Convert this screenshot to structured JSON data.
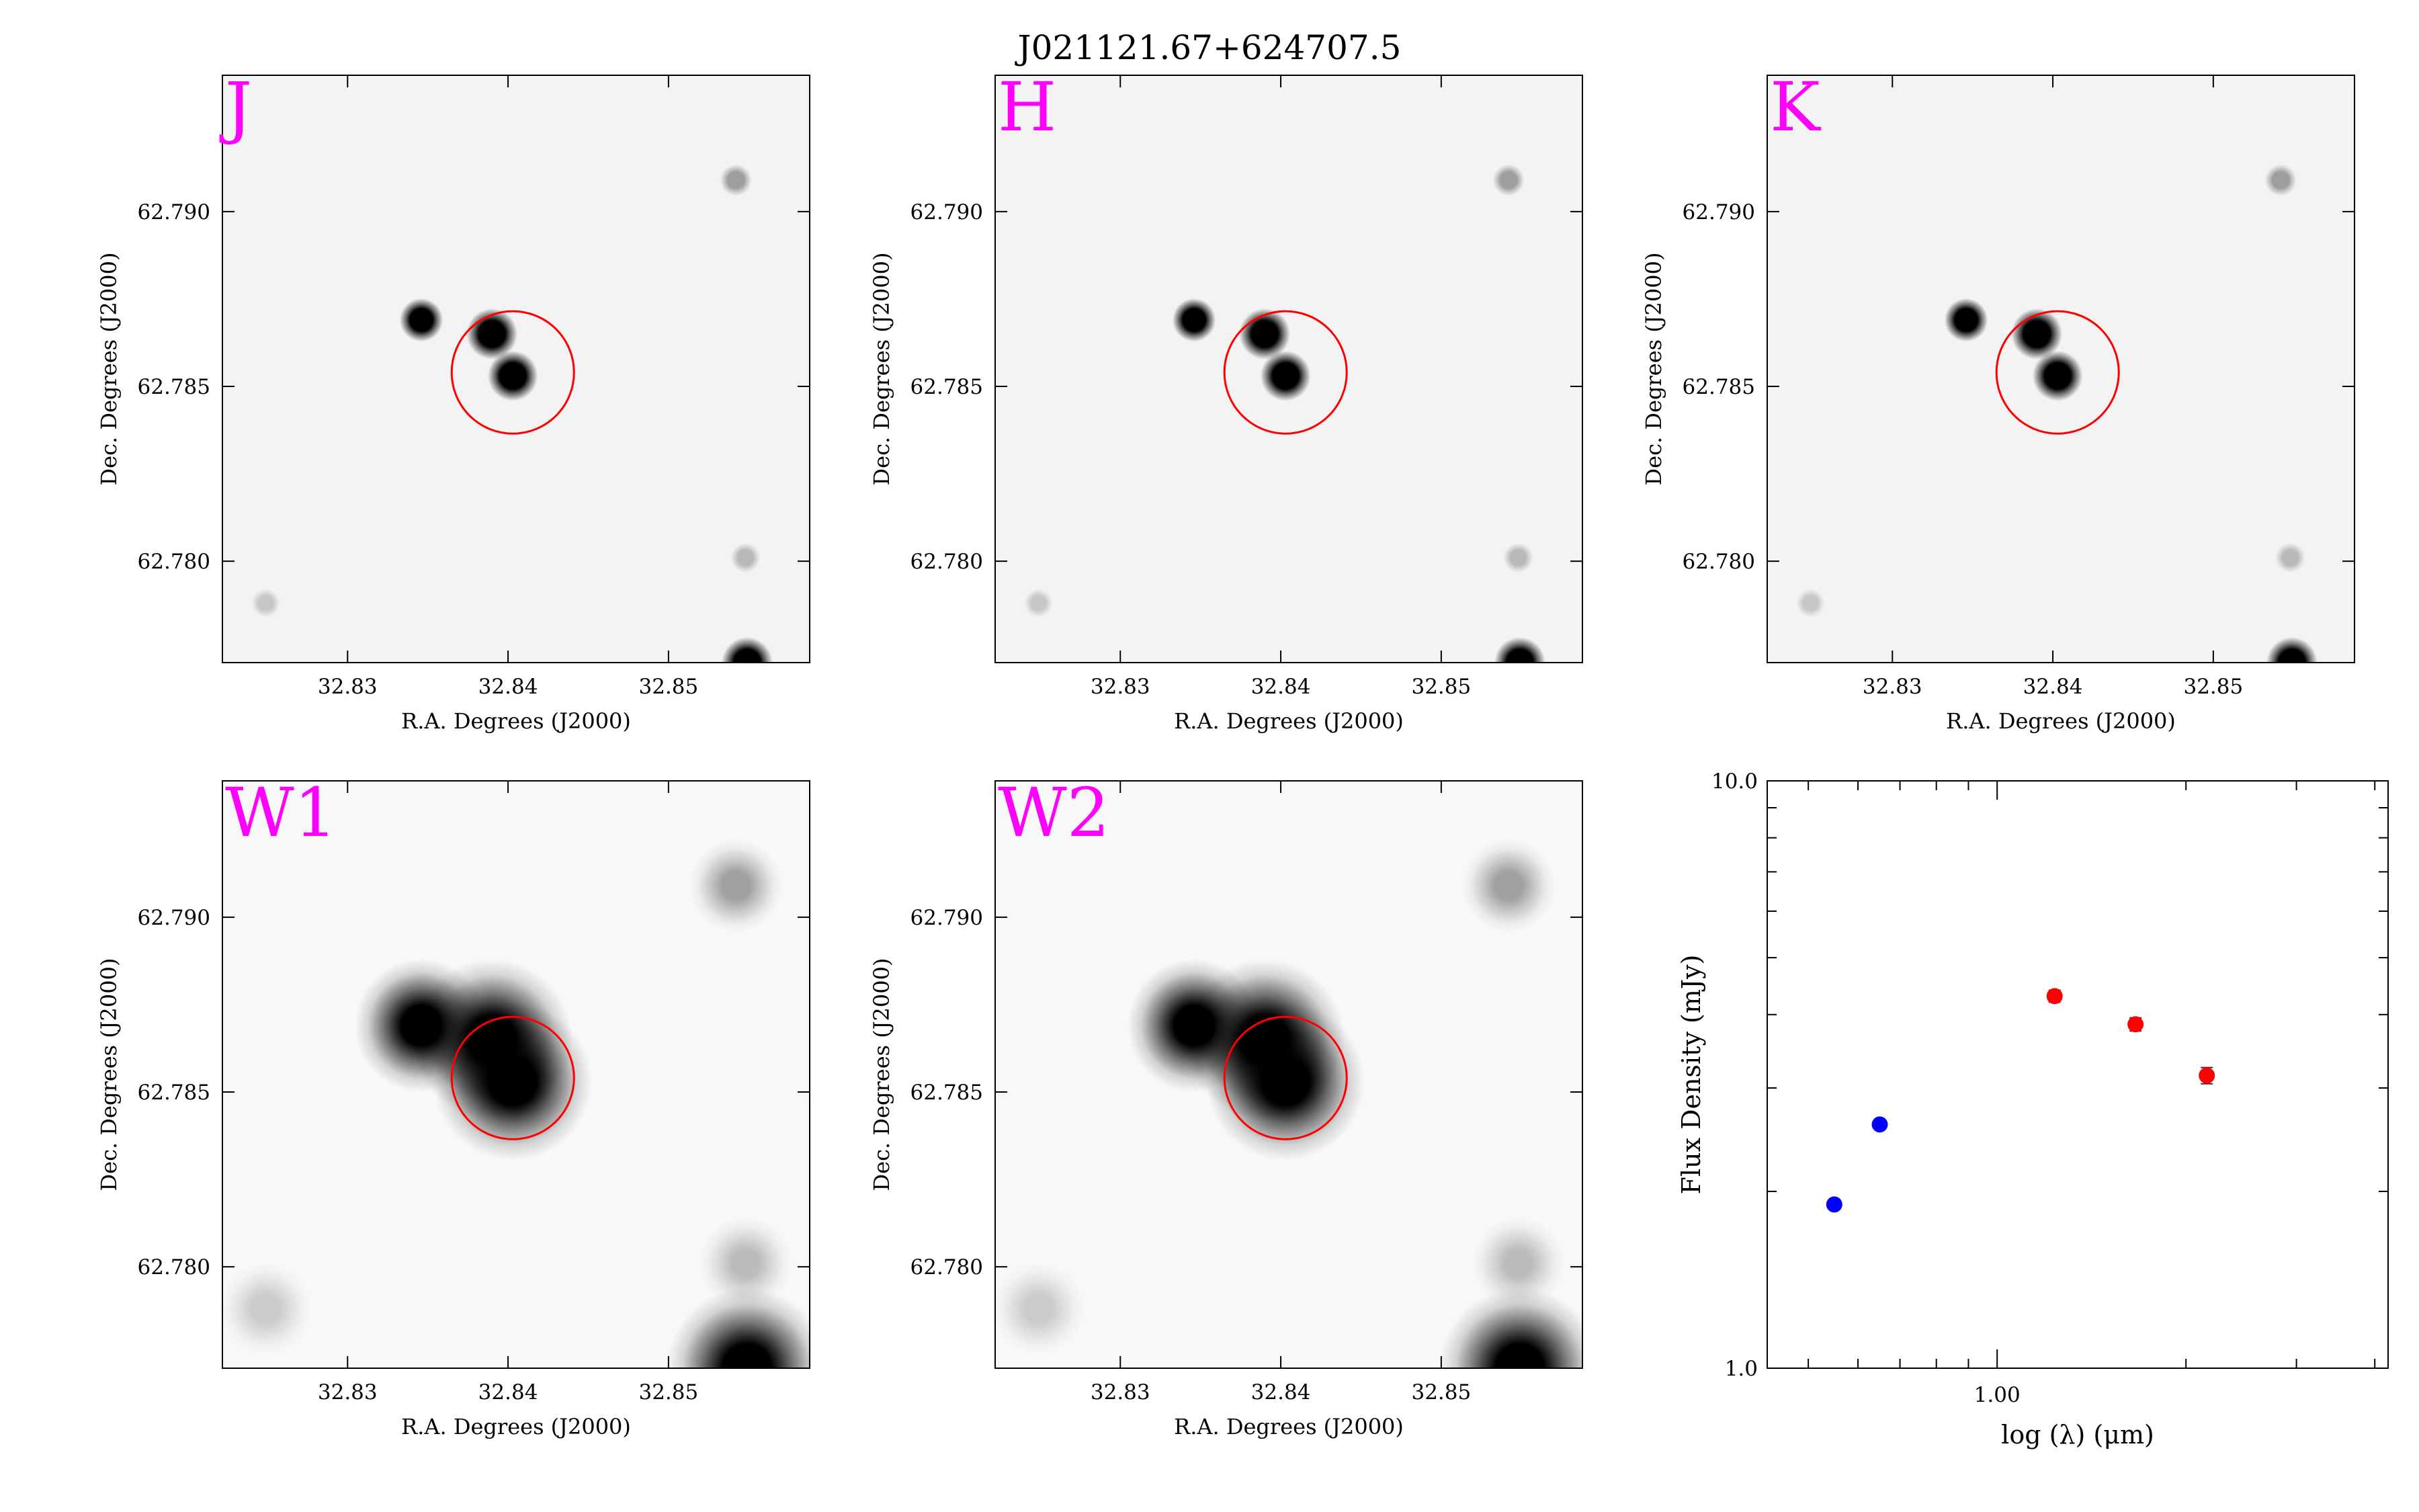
{
  "figure": {
    "title": "J021121.67+624707.5"
  },
  "panels": [
    {
      "band": "J",
      "profile": "sharp"
    },
    {
      "band": "H",
      "profile": "sharp"
    },
    {
      "band": "K",
      "profile": "sharp"
    },
    {
      "band": "W1",
      "profile": "blur"
    },
    {
      "band": "W2",
      "profile": "blur"
    }
  ],
  "image_axes": {
    "xlabel": "R.A. Degrees (J2000)",
    "ylabel": "Dec. Degrees (J2000)",
    "xlim": [
      32.8222,
      32.8588
    ],
    "ylim": [
      62.7771,
      62.7939
    ],
    "xticks": [
      "32.83",
      "32.84",
      "32.85"
    ],
    "xtick_values": [
      32.83,
      32.84,
      32.85
    ],
    "yticks": [
      "62.790",
      "62.785",
      "62.780"
    ],
    "ytick_values": [
      62.79,
      62.785,
      62.78
    ],
    "target_marker_color": "#ff0000",
    "target": {
      "ra": 32.8403,
      "dec": 62.7854,
      "radius_deg": 0.00175
    }
  },
  "sources": [
    {
      "ra": 32.8346,
      "dec": 62.7869,
      "flux": 0.55
    },
    {
      "ra": 32.839,
      "dec": 62.7865,
      "flux": 1.0
    },
    {
      "ra": 32.8403,
      "dec": 62.7853,
      "flux": 0.95
    },
    {
      "ra": 32.8549,
      "dec": 62.7771,
      "flux": 1.0
    },
    {
      "ra": 32.8542,
      "dec": 62.7909,
      "flux": 0.12
    },
    {
      "ra": 32.8249,
      "dec": 62.7788,
      "flux": 0.06
    },
    {
      "ra": 32.8548,
      "dec": 62.7801,
      "flux": 0.08
    }
  ],
  "chart_data": {
    "type": "scatter",
    "title": "",
    "xlabel": "log (λ) (μm)",
    "ylabel": "Flux Density (mJy)",
    "xscale": "log",
    "yscale": "log",
    "xlim": [
      0.43,
      4.2
    ],
    "ylim": [
      1.0,
      10.0
    ],
    "xtick_labels": [
      "1.00"
    ],
    "xtick_values": [
      1.0
    ],
    "ytick_labels": [
      "10.0",
      "1.0"
    ],
    "ytick_values": [
      10.0,
      1.0
    ],
    "series": [
      {
        "name": "",
        "color": "#0000ff",
        "x": [
          0.55,
          0.65
        ],
        "y": [
          1.9,
          2.6
        ],
        "yerr": [
          0.0,
          0.0
        ]
      },
      {
        "name": "",
        "color": "#ff0000",
        "x": [
          1.235,
          1.662,
          2.159
        ],
        "y": [
          4.3,
          3.85,
          3.15
        ],
        "yerr": [
          0.1,
          0.1,
          0.1
        ]
      }
    ]
  }
}
